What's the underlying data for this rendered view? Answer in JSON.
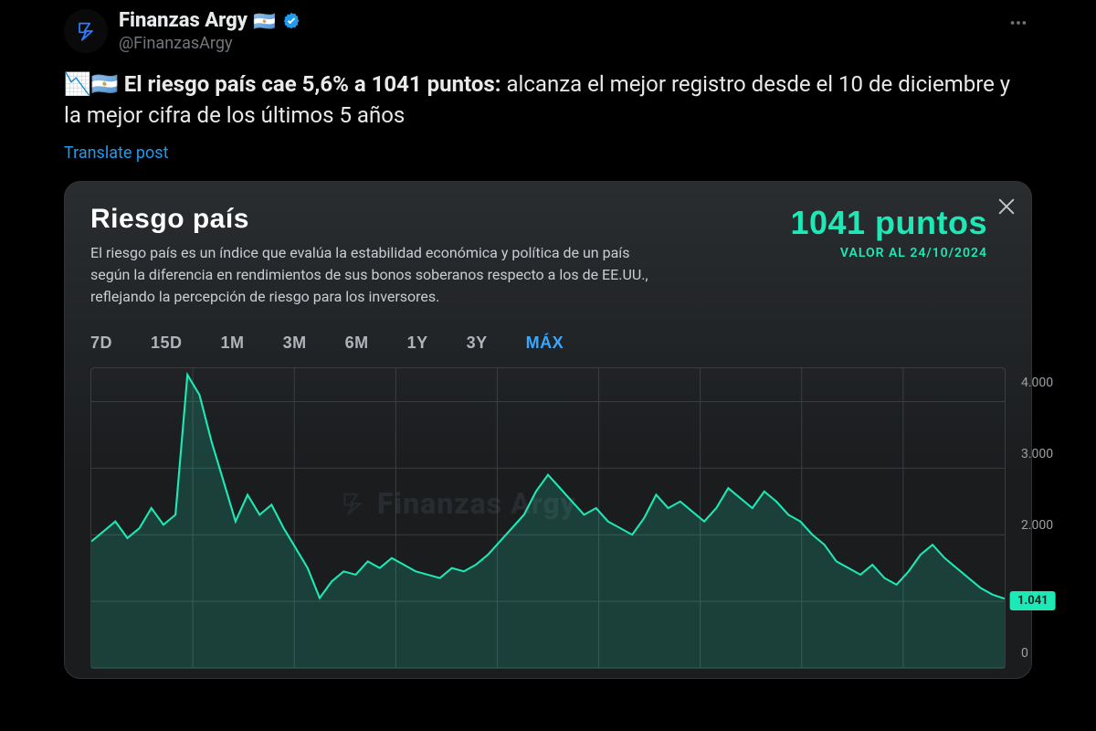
{
  "tweet": {
    "display_name": "Finanzas Argy",
    "flag": "🇦🇷",
    "handle": "@FinanzasArgy",
    "body_prefix_emoji": "📉🇦🇷",
    "body_bold": " El riesgo país cae 5,6% a 1041 puntos:",
    "body_rest": " alcanza el mejor registro desde el 10 de diciembre y la mejor cifra de los últimos 5 años",
    "translate": "Translate post",
    "verified_color": "#1d9bf0",
    "avatar_bg": "#0a0a0a",
    "avatar_stroke": "#2b7fff"
  },
  "card": {
    "title": "Riesgo país",
    "desc": "El riesgo país es un índice que evalúa la estabilidad económica y política de un país según la diferencia en rendimientos de sus bonos soberanos respecto a los de EE.UU., reflejando la percepción de riesgo para los inversores.",
    "value": "1041 puntos",
    "date_label": "VALOR AL 24/10/2024",
    "close_color": "#c4c8cc",
    "accent": "#1de9b6",
    "bg_top": "#2a2d30",
    "bg_bottom": "#1a1c1e",
    "border": "#2f3336"
  },
  "ranges": {
    "items": [
      "7D",
      "15D",
      "1M",
      "3M",
      "6M",
      "1Y",
      "3Y",
      "MÁX"
    ],
    "active_index": 7,
    "active_color": "#3ba7ff",
    "inactive_color": "#b0b4b8"
  },
  "chart": {
    "type": "area",
    "ylim": [
      0,
      4500
    ],
    "yticks": [
      4000,
      3000,
      2000,
      1000,
      0
    ],
    "ytick_labels": [
      "4.000",
      "3.000",
      "2.000",
      "",
      "0"
    ],
    "current_value": 1041,
    "current_label": "1.041",
    "line_color": "#1de9b6",
    "fill_color": "rgba(29,233,182,0.18)",
    "grid_color": "#3a3d40",
    "line_width": 2,
    "watermark_text": "Finanzas Argy",
    "series": [
      1900,
      2050,
      2200,
      1950,
      2100,
      2400,
      2150,
      2300,
      4400,
      4100,
      3400,
      2800,
      2200,
      2600,
      2300,
      2450,
      2100,
      1800,
      1500,
      1050,
      1300,
      1450,
      1400,
      1600,
      1500,
      1650,
      1550,
      1450,
      1400,
      1350,
      1500,
      1450,
      1550,
      1700,
      1900,
      2100,
      2300,
      2650,
      2900,
      2700,
      2500,
      2300,
      2400,
      2200,
      2100,
      2000,
      2250,
      2600,
      2400,
      2500,
      2350,
      2200,
      2400,
      2700,
      2550,
      2400,
      2650,
      2500,
      2300,
      2200,
      2000,
      1850,
      1600,
      1500,
      1400,
      1550,
      1350,
      1250,
      1450,
      1700,
      1850,
      1650,
      1500,
      1350,
      1200,
      1100,
      1041
    ]
  }
}
